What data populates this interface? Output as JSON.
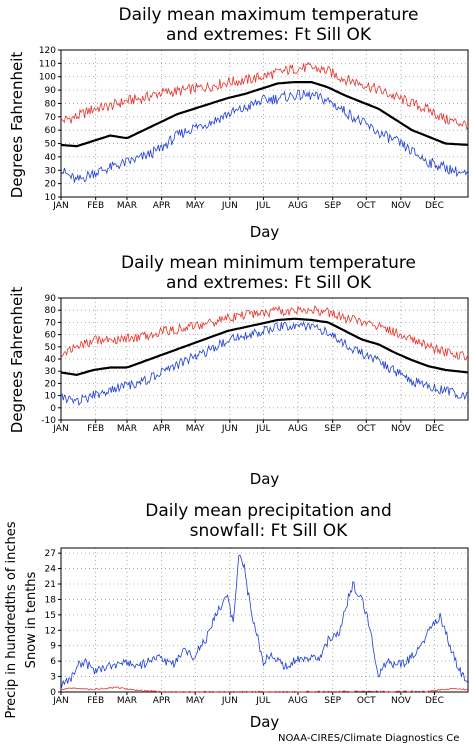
{
  "credit": "NOAA-CIRES/Climate Diagnostics Ce",
  "colors": {
    "mean": "#000000",
    "max_extreme": "#e8342c",
    "min_extreme": "#1f3fd6",
    "grid": "#9a9a9a"
  },
  "chart_data": [
    {
      "type": "line",
      "title": [
        "Daily mean maximum temperature",
        "and extremes: Ft Sill OK"
      ],
      "xlabel": "Day",
      "ylabel": [
        "Degrees Fahrenheit"
      ],
      "months": [
        "JAN",
        "FEB",
        "MAR",
        "APR",
        "MAY",
        "JUN",
        "JUL",
        "AUG",
        "SEP",
        "OCT",
        "NOV",
        "DEC"
      ],
      "xlim": [
        1,
        365
      ],
      "ylim": [
        10,
        120
      ],
      "yticks": [
        10,
        20,
        30,
        40,
        50,
        60,
        70,
        80,
        90,
        100,
        110,
        120
      ],
      "grid": true,
      "series": [
        {
          "role": "mean",
          "color": "#000000",
          "x": [
            1,
            15,
            30,
            45,
            60,
            75,
            90,
            105,
            120,
            135,
            150,
            165,
            180,
            195,
            210,
            225,
            240,
            255,
            270,
            285,
            300,
            315,
            330,
            345,
            365
          ],
          "y": [
            49,
            48,
            52,
            56,
            54,
            60,
            66,
            72,
            76,
            80,
            84,
            87,
            91,
            95,
            96,
            96,
            92,
            86,
            81,
            76,
            68,
            60,
            55,
            50,
            49
          ]
        },
        {
          "role": "max_extreme",
          "color": "#e8342c",
          "x": [
            1,
            15,
            30,
            45,
            60,
            75,
            90,
            105,
            120,
            135,
            150,
            165,
            180,
            195,
            210,
            225,
            240,
            255,
            270,
            285,
            300,
            315,
            330,
            345,
            365
          ],
          "y": [
            67,
            70,
            76,
            78,
            82,
            84,
            88,
            89,
            91,
            93,
            96,
            97,
            100,
            103,
            106,
            107,
            104,
            98,
            95,
            90,
            85,
            80,
            75,
            68,
            64
          ]
        },
        {
          "role": "min_extreme",
          "color": "#1f3fd6",
          "x": [
            1,
            15,
            30,
            45,
            60,
            75,
            90,
            105,
            120,
            135,
            150,
            165,
            180,
            195,
            210,
            225,
            240,
            255,
            270,
            285,
            300,
            315,
            330,
            345,
            365
          ],
          "y": [
            30,
            22,
            28,
            32,
            36,
            40,
            46,
            56,
            62,
            66,
            72,
            76,
            82,
            84,
            86,
            86,
            82,
            74,
            66,
            58,
            52,
            44,
            36,
            32,
            26
          ]
        }
      ]
    },
    {
      "type": "line",
      "title": [
        "Daily mean minimum temperature",
        "and extremes: Ft Sill OK"
      ],
      "xlabel": "Day",
      "ylabel": [
        "Degrees Fahrenheit"
      ],
      "months": [
        "JAN",
        "FEB",
        "MAR",
        "APR",
        "MAY",
        "JUN",
        "JUL",
        "AUG",
        "SEP",
        "OCT",
        "NOV",
        "DEC"
      ],
      "xlim": [
        1,
        365
      ],
      "ylim": [
        -10,
        90
      ],
      "yticks": [
        -10,
        0,
        10,
        20,
        30,
        40,
        50,
        60,
        70,
        80,
        90
      ],
      "grid": true,
      "series": [
        {
          "role": "mean",
          "color": "#000000",
          "x": [
            1,
            15,
            30,
            45,
            60,
            75,
            90,
            105,
            120,
            135,
            150,
            165,
            180,
            195,
            210,
            225,
            240,
            255,
            270,
            285,
            300,
            315,
            330,
            345,
            365
          ],
          "y": [
            29,
            27,
            31,
            33,
            33,
            38,
            43,
            48,
            53,
            58,
            63,
            66,
            69,
            72,
            73,
            72,
            70,
            63,
            56,
            52,
            45,
            39,
            34,
            31,
            29
          ]
        },
        {
          "role": "max_extreme",
          "color": "#e8342c",
          "x": [
            1,
            15,
            30,
            45,
            60,
            75,
            90,
            105,
            120,
            135,
            150,
            165,
            180,
            195,
            210,
            225,
            240,
            255,
            270,
            285,
            300,
            315,
            330,
            345,
            365
          ],
          "y": [
            45,
            50,
            55,
            56,
            57,
            58,
            62,
            65,
            67,
            70,
            74,
            76,
            77,
            79,
            80,
            80,
            78,
            74,
            71,
            67,
            62,
            56,
            50,
            45,
            42
          ]
        },
        {
          "role": "min_extreme",
          "color": "#1f3fd6",
          "x": [
            1,
            15,
            30,
            45,
            60,
            75,
            90,
            105,
            120,
            135,
            150,
            165,
            180,
            195,
            210,
            225,
            240,
            255,
            270,
            285,
            300,
            315,
            330,
            345,
            365
          ],
          "y": [
            10,
            5,
            10,
            15,
            18,
            22,
            28,
            35,
            42,
            48,
            55,
            60,
            62,
            66,
            67,
            67,
            62,
            52,
            45,
            38,
            30,
            22,
            18,
            14,
            10
          ]
        }
      ]
    },
    {
      "type": "line",
      "title": [
        "Daily mean precipitation and",
        "snowfall: Ft Sill OK"
      ],
      "xlabel": "Day",
      "ylabel": [
        "Precip in hundredths of inches",
        "Snow in tenths"
      ],
      "months": [
        "JAN",
        "FEB",
        "MAR",
        "APR",
        "MAY",
        "JUN",
        "JUL",
        "AUG",
        "SEP",
        "OCT",
        "NOV",
        "DEC"
      ],
      "xlim": [
        1,
        365
      ],
      "ylim": [
        0,
        28
      ],
      "yticks": [
        0,
        3,
        6,
        9,
        12,
        15,
        18,
        21,
        24,
        27
      ],
      "grid": true,
      "series": [
        {
          "role": "precip",
          "color": "#1f3fd6",
          "x": [
            1,
            8,
            15,
            22,
            30,
            40,
            50,
            60,
            70,
            80,
            90,
            100,
            110,
            120,
            130,
            140,
            150,
            155,
            160,
            165,
            170,
            175,
            182,
            190,
            200,
            210,
            220,
            230,
            240,
            250,
            255,
            262,
            270,
            278,
            285,
            292,
            300,
            310,
            320,
            330,
            340,
            350,
            358,
            365
          ],
          "y": [
            1,
            2,
            5,
            6,
            4,
            5,
            5,
            6,
            5,
            6,
            7,
            5,
            8,
            7,
            10,
            15,
            19,
            13,
            27,
            24,
            17,
            12,
            6,
            7,
            5,
            6,
            7,
            6,
            10,
            12,
            16,
            21,
            18,
            12,
            3,
            6,
            5,
            6,
            8,
            12,
            15,
            8,
            4,
            2
          ]
        },
        {
          "role": "snow",
          "color": "#e8342c",
          "x": [
            1,
            10,
            20,
            30,
            40,
            50,
            60,
            70,
            80,
            90,
            100,
            330,
            340,
            350,
            365
          ],
          "y": [
            0.5,
            0.8,
            0.6,
            0.5,
            0.7,
            0.9,
            0.6,
            0.3,
            0.2,
            0.1,
            0,
            0.1,
            0.4,
            0.6,
            0.5
          ]
        }
      ]
    }
  ]
}
